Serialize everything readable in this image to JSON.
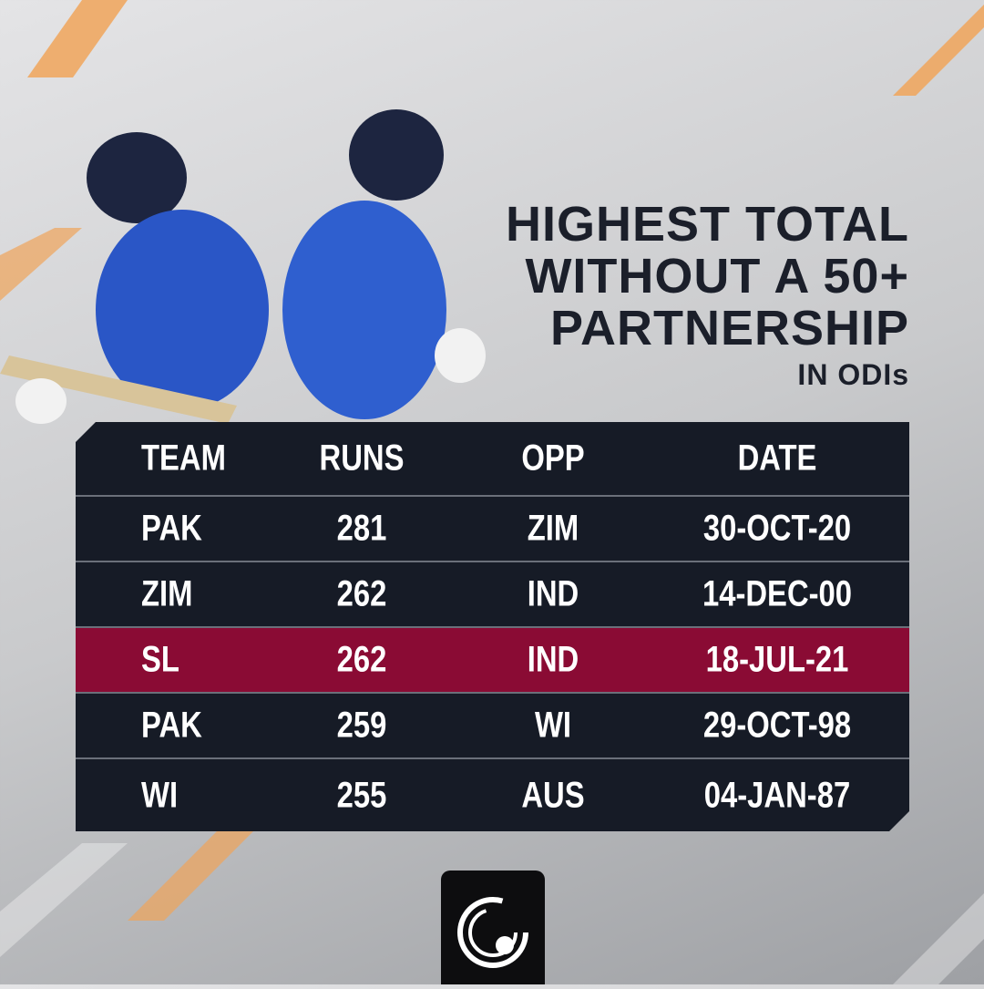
{
  "title": {
    "lines": [
      "HIGHEST TOTAL",
      "WITHOUT A 50+",
      "PARTNERSHIP"
    ],
    "subtitle": "IN ODIs"
  },
  "table": {
    "header": [
      "TEAM",
      "RUNS",
      "OPP",
      "DATE"
    ],
    "rows": [
      [
        "PAK",
        281,
        "ZIM",
        "30-OCT-20"
      ],
      [
        "ZIM",
        262,
        "IND",
        "14-DEC-00"
      ],
      [
        "SL",
        262,
        "IND",
        "18-JUL-21"
      ],
      [
        "PAK",
        259,
        "WI",
        "29-OCT-98"
      ],
      [
        "WI",
        255,
        "AUS",
        "04-JAN-87"
      ]
    ]
  }
}
